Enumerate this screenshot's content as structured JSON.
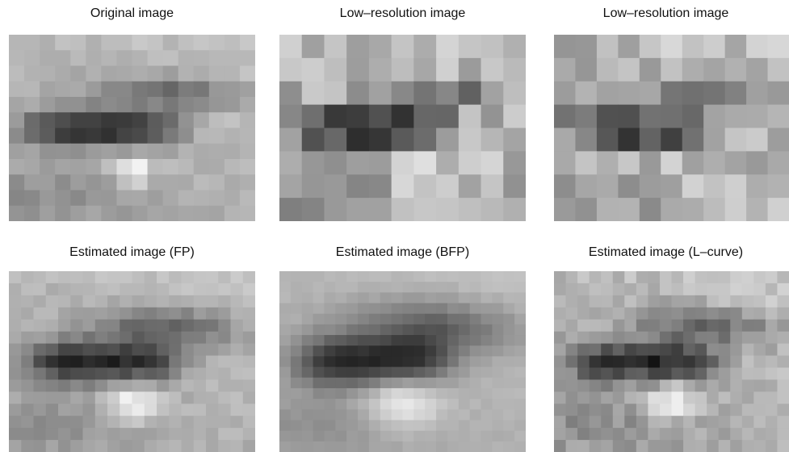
{
  "panels": [
    {
      "title": "Original image"
    },
    {
      "title": "Low–resolution image"
    },
    {
      "title": "Low–resolution image"
    },
    {
      "title": "Estimated image (FP)"
    },
    {
      "title": "Estimated image (BFP)"
    },
    {
      "title": "Estimated image (L–curve)"
    }
  ]
}
